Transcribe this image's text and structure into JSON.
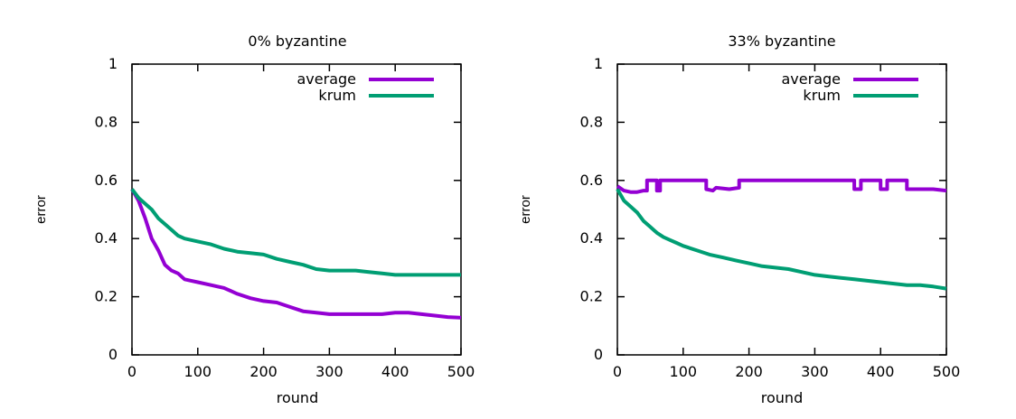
{
  "chart_data": [
    {
      "type": "line",
      "title": "0% byzantine",
      "xlabel": "round",
      "ylabel": "error",
      "xlim": [
        0,
        500
      ],
      "ylim": [
        0,
        1
      ],
      "xticks": [
        "0",
        "100",
        "200",
        "300",
        "400",
        "500"
      ],
      "yticks": [
        "0",
        "0.2",
        "0.4",
        "0.6",
        "0.8",
        "1"
      ],
      "legend_position": "top-right",
      "grid": false,
      "series": [
        {
          "name": "average",
          "color": "#9400d3",
          "x": [
            0,
            10,
            20,
            30,
            40,
            50,
            60,
            70,
            80,
            90,
            100,
            120,
            140,
            160,
            180,
            200,
            220,
            240,
            260,
            280,
            300,
            320,
            340,
            360,
            380,
            400,
            420,
            440,
            460,
            480,
            500
          ],
          "y": [
            0.57,
            0.53,
            0.47,
            0.4,
            0.36,
            0.31,
            0.29,
            0.28,
            0.26,
            0.255,
            0.25,
            0.24,
            0.23,
            0.21,
            0.195,
            0.185,
            0.18,
            0.165,
            0.15,
            0.145,
            0.14,
            0.14,
            0.14,
            0.14,
            0.14,
            0.145,
            0.145,
            0.14,
            0.135,
            0.13,
            0.128
          ]
        },
        {
          "name": "krum",
          "color": "#009e73",
          "x": [
            0,
            10,
            20,
            30,
            40,
            50,
            60,
            70,
            80,
            90,
            100,
            120,
            140,
            160,
            180,
            200,
            220,
            240,
            260,
            280,
            300,
            320,
            340,
            360,
            380,
            400,
            420,
            440,
            460,
            480,
            500
          ],
          "y": [
            0.57,
            0.54,
            0.52,
            0.5,
            0.47,
            0.45,
            0.43,
            0.41,
            0.4,
            0.395,
            0.39,
            0.38,
            0.365,
            0.355,
            0.35,
            0.345,
            0.33,
            0.32,
            0.31,
            0.295,
            0.29,
            0.29,
            0.29,
            0.285,
            0.28,
            0.275,
            0.275,
            0.275,
            0.275,
            0.275,
            0.275
          ]
        }
      ]
    },
    {
      "type": "line",
      "title": "33% byzantine",
      "xlabel": "round",
      "ylabel": "error",
      "xlim": [
        0,
        500
      ],
      "ylim": [
        0,
        1
      ],
      "xticks": [
        "0",
        "100",
        "200",
        "300",
        "400",
        "500"
      ],
      "yticks": [
        "0",
        "0.2",
        "0.4",
        "0.6",
        "0.8",
        "1"
      ],
      "legend_position": "top-right",
      "grid": false,
      "series": [
        {
          "name": "average",
          "color": "#9400d3",
          "x": [
            0,
            10,
            20,
            30,
            40,
            45,
            45,
            60,
            60,
            65,
            65,
            75,
            75,
            135,
            135,
            145,
            150,
            170,
            185,
            185,
            260,
            360,
            360,
            370,
            370,
            400,
            400,
            410,
            410,
            430,
            430,
            440,
            440,
            460,
            480,
            500
          ],
          "y": [
            0.58,
            0.565,
            0.56,
            0.56,
            0.565,
            0.565,
            0.6,
            0.6,
            0.565,
            0.565,
            0.6,
            0.6,
            0.6,
            0.6,
            0.57,
            0.565,
            0.575,
            0.57,
            0.575,
            0.6,
            0.6,
            0.6,
            0.57,
            0.57,
            0.6,
            0.6,
            0.57,
            0.57,
            0.6,
            0.6,
            0.6,
            0.6,
            0.57,
            0.57,
            0.57,
            0.565
          ]
        },
        {
          "name": "krum",
          "color": "#009e73",
          "x": [
            0,
            10,
            20,
            30,
            40,
            50,
            60,
            70,
            80,
            90,
            100,
            120,
            140,
            160,
            180,
            200,
            220,
            240,
            260,
            280,
            300,
            320,
            340,
            360,
            380,
            400,
            420,
            440,
            460,
            480,
            500
          ],
          "y": [
            0.57,
            0.53,
            0.51,
            0.49,
            0.46,
            0.44,
            0.42,
            0.405,
            0.395,
            0.385,
            0.375,
            0.36,
            0.345,
            0.335,
            0.325,
            0.315,
            0.305,
            0.3,
            0.295,
            0.285,
            0.275,
            0.27,
            0.265,
            0.26,
            0.255,
            0.25,
            0.245,
            0.24,
            0.24,
            0.235,
            0.228
          ]
        }
      ]
    }
  ]
}
